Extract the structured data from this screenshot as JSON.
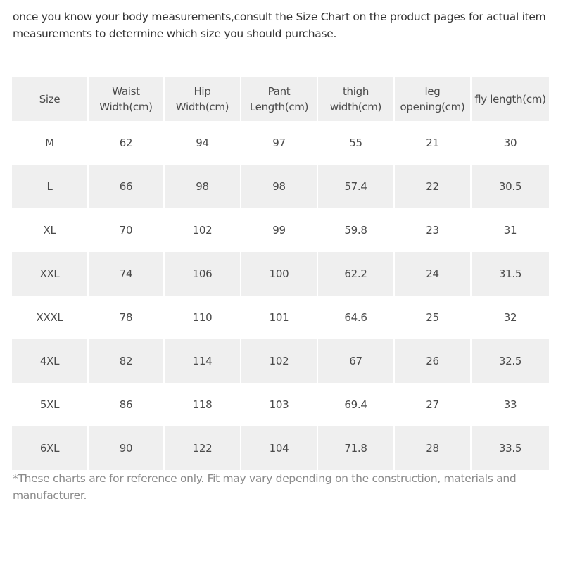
{
  "intro": {
    "line1": "once you know your body measurements,consult the Size Chart on the product pages for actual item",
    "line2": "measurements to determine which size you should purchase."
  },
  "table": {
    "headers": [
      [
        "Size"
      ],
      [
        "Waist",
        "Width(cm)"
      ],
      [
        "Hip Width(cm)"
      ],
      [
        "Pant",
        "Length(cm)"
      ],
      [
        "thigh",
        "width(cm)"
      ],
      [
        "leg",
        "opening(cm)"
      ],
      [
        "fly length(cm)"
      ]
    ],
    "rows": [
      [
        "M",
        "62",
        "94",
        "97",
        "55",
        "21",
        "30"
      ],
      [
        "L",
        "66",
        "98",
        "98",
        "57.4",
        "22",
        "30.5"
      ],
      [
        "XL",
        "70",
        "102",
        "99",
        "59.8",
        "23",
        "31"
      ],
      [
        "XXL",
        "74",
        "106",
        "100",
        "62.2",
        "24",
        "31.5"
      ],
      [
        "XXXL",
        "78",
        "110",
        "101",
        "64.6",
        "25",
        "32"
      ],
      [
        "4XL",
        "82",
        "114",
        "102",
        "67",
        "26",
        "32.5"
      ],
      [
        "5XL",
        "86",
        "118",
        "103",
        "69.4",
        "27",
        "33"
      ],
      [
        "6XL",
        "90",
        "122",
        "104",
        "71.8",
        "28",
        "33.5"
      ]
    ]
  },
  "footnote": {
    "line1": "*These charts are for reference only. Fit may vary depending on the construction, materials and",
    "line2": "manufacturer."
  }
}
